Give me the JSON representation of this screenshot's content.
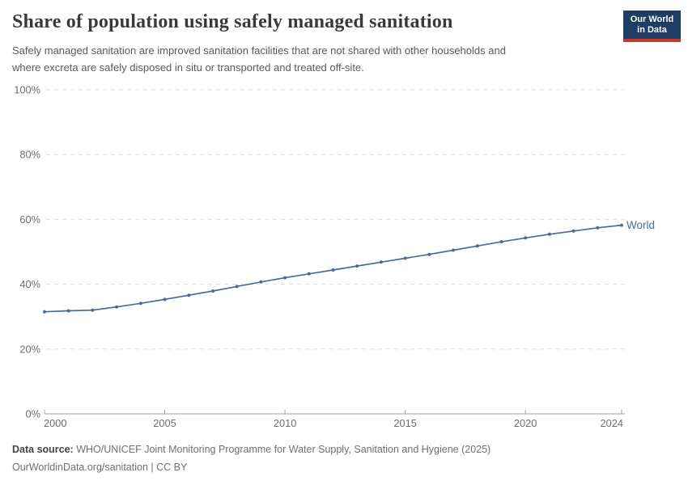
{
  "chart_data": {
    "type": "line",
    "title": "Share of population using safely managed sanitation",
    "subtitle_lines": [
      "Safely managed sanitation are improved sanitation facilities that are not shared with other households and",
      "where excreta are safely disposed in situ or transported and treated off-site."
    ],
    "x": [
      2000,
      2001,
      2002,
      2003,
      2004,
      2005,
      2006,
      2007,
      2008,
      2009,
      2010,
      2011,
      2012,
      2013,
      2014,
      2015,
      2016,
      2017,
      2018,
      2019,
      2020,
      2021,
      2022,
      2023,
      2024
    ],
    "series": [
      {
        "name": "World",
        "color": "#4c6a9c",
        "values": [
          31.5,
          31.8,
          32.0,
          33.0,
          34.1,
          35.3,
          36.6,
          37.9,
          39.3,
          40.7,
          42.0,
          43.2,
          44.4,
          45.6,
          46.8,
          48.0,
          49.2,
          50.5,
          51.8,
          53.1,
          54.3,
          55.4,
          56.4,
          57.4,
          58.2
        ]
      }
    ],
    "xticks": [
      2000,
      2005,
      2010,
      2015,
      2020,
      2024
    ],
    "yticks": [
      0,
      20,
      40,
      60,
      80,
      100
    ],
    "ytick_suffix": "%",
    "xlim": [
      2000,
      2024
    ],
    "ylim": [
      0,
      100
    ],
    "grid": "horizontal-dashed",
    "legend": "end-of-line-label",
    "end_label": "World"
  },
  "logo": {
    "line1": "Our World",
    "line2": "in Data",
    "bg_color": "#1d3d63",
    "stripe_color": "#c9362c"
  },
  "footer": {
    "label": "Data source:",
    "source": " WHO/UNICEF Joint Monitoring Programme for Water Supply, Sanitation and Hygiene (2025)",
    "link_line": "OurWorldinData.org/sanitation | CC BY"
  },
  "colors": {
    "axis_text": "#6e6e6e",
    "gridline": "#dcdcdc",
    "axis_line": "#a3a3a3",
    "title": "#3a3a3a",
    "subtitle": "#5a5a5a"
  }
}
